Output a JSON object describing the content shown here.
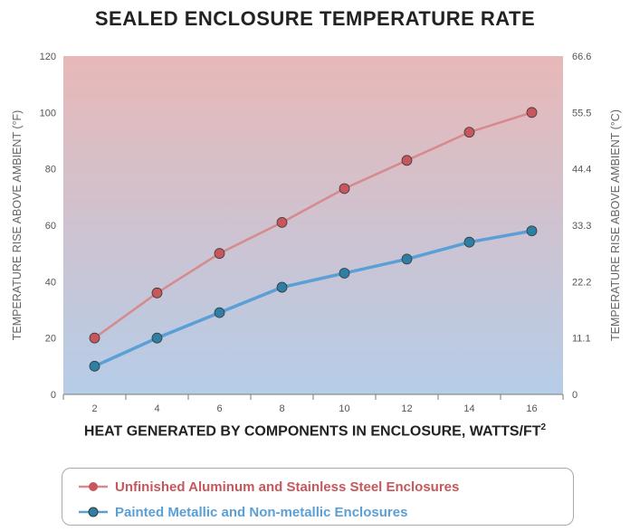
{
  "title": "SEALED ENCLOSURE TEMPERATURE RATE",
  "colors": {
    "red_series": "#c7575c",
    "red_line": "#d68a8e",
    "blue_series": "#2e7fa3",
    "blue_line": "#5a9fd6",
    "bg_top": "#e8b8b8",
    "bg_bottom": "#b5cde8"
  },
  "chart_data": {
    "type": "line",
    "title": "SEALED ENCLOSURE TEMPERATURE RATE",
    "x": [
      2,
      4,
      6,
      8,
      10,
      12,
      14,
      16
    ],
    "xlabel": "HEAT GENERATED BY COMPONENTS IN ENCLOSURE, WATTS/FT",
    "xlabel_superscript": "2",
    "ylabel": "TEMPERATURE RISE ABOVE AMBIENT (°F)",
    "y2label": "TEMPERATURE RISE ABOVE AMBIENT (°C)",
    "ylim": [
      0,
      120
    ],
    "yticks": [
      "0",
      "20",
      "40",
      "60",
      "80",
      "100",
      "120"
    ],
    "y2ticks": [
      "0",
      "11.1",
      "22.2",
      "33.3",
      "44.4",
      "55.5",
      "66.6"
    ],
    "xticks": [
      "2",
      "4",
      "6",
      "8",
      "10",
      "12",
      "14",
      "16"
    ],
    "series": [
      {
        "name": "Unfinished Aluminum and Stainless Steel Enclosures",
        "values": [
          20,
          36,
          50,
          61,
          73,
          83,
          93,
          100
        ]
      },
      {
        "name": "Painted Metallic and Non-metallic Enclosures",
        "values": [
          10,
          20,
          29,
          38,
          43,
          48,
          54,
          58
        ]
      }
    ],
    "grid": false,
    "legend_position": "bottom"
  }
}
